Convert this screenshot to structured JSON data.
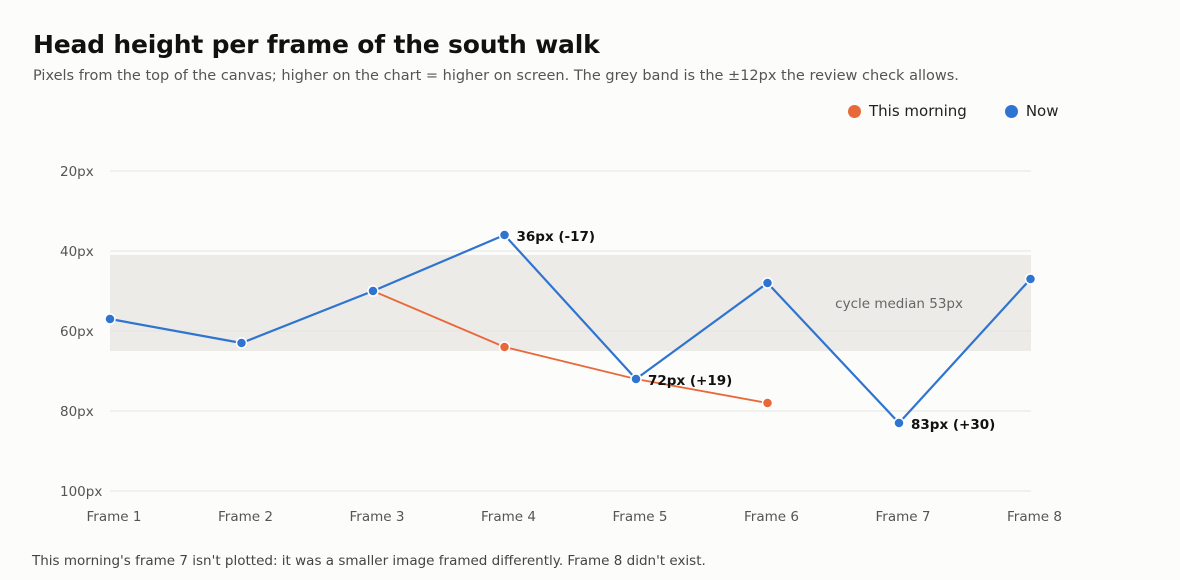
{
  "title": "Head height per frame of the south walk",
  "subtitle": "Pixels from the top of the canvas; higher on the chart = higher on screen. The grey band is the ±12px the review check allows.",
  "note": "This morning's frame 7 isn't plotted: it was a smaller image framed differently. Frame 8 didn't exist.",
  "colors": {
    "morning": "#e8683a",
    "now": "#2f74d0",
    "band": "#ecebe7",
    "grid": "#e3e3e0"
  },
  "chart_data": {
    "type": "line",
    "categories": [
      "Frame 1",
      "Frame 2",
      "Frame 3",
      "Frame 4",
      "Frame 5",
      "Frame 6",
      "Frame 7",
      "Frame 8"
    ],
    "y_inverted": true,
    "ylim": [
      20,
      100
    ],
    "yticks": [
      20,
      40,
      60,
      80,
      100
    ],
    "ytick_labels": [
      "20px",
      "40px",
      "60px",
      "80px",
      "100px"
    ],
    "legend_position": "top-right",
    "band": {
      "from": 41,
      "to": 65,
      "label": "cycle median 53px",
      "center": 53
    },
    "series": [
      {
        "name": "This morning",
        "key": "morning",
        "values": [
          57,
          null,
          50,
          64,
          72,
          78,
          null,
          null
        ]
      },
      {
        "name": "Now",
        "key": "now",
        "values": [
          57,
          63,
          50,
          36,
          72,
          48,
          83,
          47
        ]
      }
    ],
    "annotations": [
      {
        "series": "now",
        "index": 3,
        "text": "36px (-17)"
      },
      {
        "series": "now",
        "index": 4,
        "text": "72px (+19)"
      },
      {
        "series": "now",
        "index": 6,
        "text": "83px (+30)"
      }
    ]
  }
}
